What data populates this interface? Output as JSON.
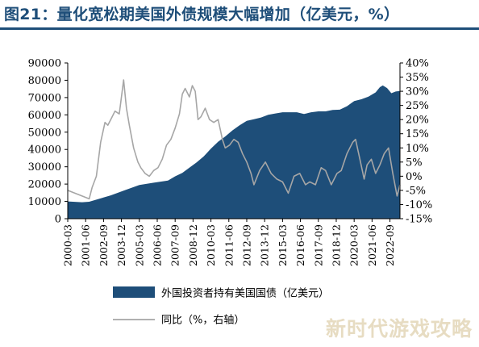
{
  "title": "图21：量化宽松期美国外债规模大幅增加（亿美元，%）",
  "watermark": "新时代游戏攻略",
  "colors": {
    "area": "#1e4e79",
    "line": "#a6a6a6",
    "title": "#1e4e79"
  },
  "chart_data": {
    "type": "area",
    "x_ticks": [
      "2000-03",
      "2001-06",
      "2002-09",
      "2003-12",
      "2005-03",
      "2006-06",
      "2007-09",
      "2008-12",
      "2010-03",
      "2011-06",
      "2012-09",
      "2013-12",
      "2015-03",
      "2016-06",
      "2017-09",
      "2018-12",
      "2020-03",
      "2021-06",
      "2022-09"
    ],
    "left_axis": {
      "ylim": [
        0,
        90000
      ],
      "ticks": [
        "0",
        "10000",
        "20000",
        "30000",
        "40000",
        "50000",
        "60000",
        "70000",
        "80000",
        "90000"
      ]
    },
    "right_axis": {
      "ylim": [
        -15,
        40
      ],
      "ticks": [
        "-15%",
        "-10%",
        "-5%",
        "0%",
        "5%",
        "10%",
        "15%",
        "20%",
        "25%",
        "30%",
        "35%",
        "40%"
      ]
    },
    "series": [
      {
        "name": "外国投资者持有美国国债（亿美元）",
        "type": "area",
        "axis": "left",
        "x": [
          2000.0,
          2001.0,
          2001.5,
          2002.0,
          2003.0,
          2004.0,
          2005.0,
          2006.0,
          2007.0,
          2007.5,
          2008.0,
          2008.5,
          2009.0,
          2009.5,
          2010.0,
          2010.5,
          2011.0,
          2011.5,
          2012.0,
          2012.5,
          2013.0,
          2013.5,
          2014.0,
          2014.5,
          2015.0,
          2015.5,
          2016.0,
          2016.5,
          2017.0,
          2017.5,
          2018.0,
          2018.5,
          2019.0,
          2019.5,
          2020.0,
          2020.5,
          2021.0,
          2021.5,
          2021.8,
          2022.0,
          2022.3,
          2022.6,
          2022.9,
          2023.2
        ],
        "values": [
          10000,
          9500,
          9800,
          11000,
          13500,
          16500,
          19500,
          20800,
          22000,
          24500,
          26500,
          29500,
          32500,
          36000,
          40500,
          44500,
          47500,
          51000,
          54000,
          56500,
          57500,
          58500,
          60000,
          60800,
          61500,
          61500,
          61500,
          60500,
          61500,
          62000,
          62000,
          62800,
          63000,
          65000,
          68000,
          69000,
          70500,
          73000,
          76000,
          77000,
          75500,
          72500,
          73500,
          73800
        ]
      },
      {
        "name": "同比（%，右轴）",
        "type": "line",
        "axis": "right",
        "x": [
          2000.0,
          2000.5,
          2001.0,
          2001.5,
          2001.7,
          2002.0,
          2002.3,
          2002.6,
          2002.8,
          2003.0,
          2003.3,
          2003.6,
          2003.9,
          2004.1,
          2004.3,
          2004.6,
          2004.9,
          2005.1,
          2005.4,
          2005.7,
          2006.0,
          2006.3,
          2006.6,
          2006.9,
          2007.2,
          2007.5,
          2007.8,
          2008.0,
          2008.2,
          2008.5,
          2008.7,
          2008.9,
          2009.1,
          2009.3,
          2009.6,
          2009.9,
          2010.2,
          2010.5,
          2010.8,
          2011.0,
          2011.3,
          2011.6,
          2011.9,
          2012.2,
          2012.5,
          2012.8,
          2013.0,
          2013.4,
          2013.8,
          2014.2,
          2014.6,
          2015.0,
          2015.4,
          2015.8,
          2016.2,
          2016.6,
          2016.9,
          2017.3,
          2017.7,
          2018.0,
          2018.4,
          2018.8,
          2019.1,
          2019.5,
          2019.9,
          2020.1,
          2020.4,
          2020.7,
          2020.9,
          2021.2,
          2021.5,
          2021.8,
          2022.1,
          2022.4,
          2022.7,
          2023.0,
          2023.2
        ],
        "values": [
          -5,
          -6,
          -7,
          -8,
          -4,
          0,
          12,
          19,
          18,
          20,
          23,
          22,
          34,
          24,
          18,
          10,
          5,
          3,
          1,
          0,
          2,
          3,
          6,
          11,
          13,
          17,
          22,
          29,
          31,
          28,
          32,
          30,
          20,
          21,
          24,
          20,
          19,
          20,
          13,
          10,
          11,
          13,
          12,
          8,
          5,
          1,
          -3,
          2,
          5,
          1,
          -1,
          -2,
          -6,
          0,
          1,
          -3,
          -2,
          -3,
          3,
          2,
          -3,
          1,
          2,
          8,
          12,
          13,
          6,
          -1,
          4,
          6,
          1,
          4,
          8,
          10,
          1,
          -7,
          -3
        ]
      }
    ],
    "legend": [
      {
        "label": "外国投资者持有美国国债（亿美元）",
        "kind": "area"
      },
      {
        "label": "同比（%，右轴）",
        "kind": "line"
      }
    ],
    "legend_position": "bottom-left",
    "grid": false
  }
}
